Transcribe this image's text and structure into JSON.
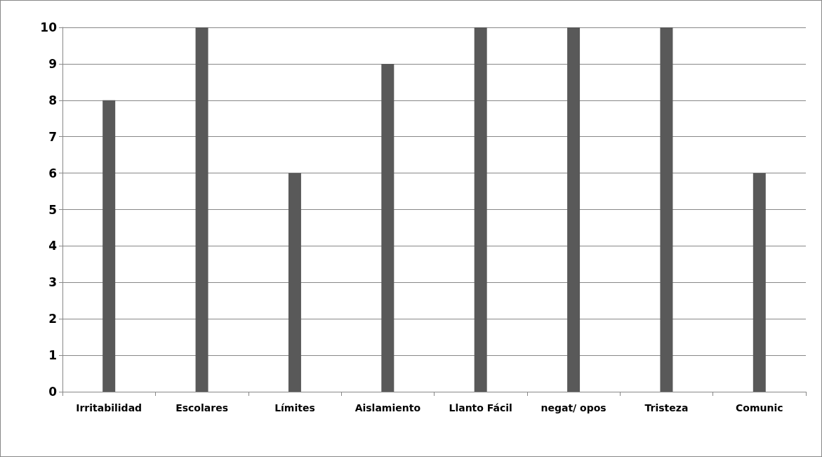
{
  "chart_data": {
    "type": "bar",
    "categories": [
      "Irritabilidad",
      "Escolares",
      "Límites",
      "Aislamiento",
      "Llanto Fácil",
      "negat/ opos",
      "Tristeza",
      "Comunic"
    ],
    "values": [
      8,
      10,
      6,
      9,
      10,
      10,
      10,
      6
    ],
    "color": "#595959",
    "ylim": [
      0,
      10
    ],
    "yticks": [
      0,
      1,
      2,
      3,
      4,
      5,
      6,
      7,
      8,
      9,
      10
    ],
    "grid": "y"
  }
}
